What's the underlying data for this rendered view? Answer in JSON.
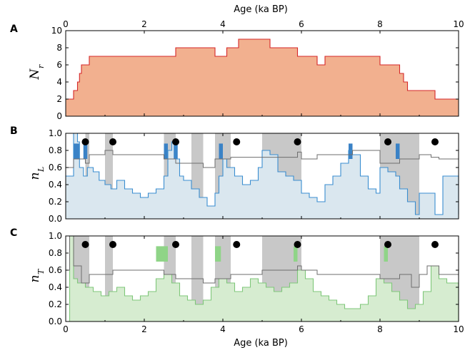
{
  "chart_data": [
    {
      "panel": "A",
      "type": "area",
      "ylabel": "N",
      "ylabel_sub": "r",
      "top_xlabel": "Age (ka BP)",
      "xlim": [
        0,
        10
      ],
      "ylim": [
        0,
        10
      ],
      "xticks": [
        0,
        2,
        4,
        6,
        8,
        10
      ],
      "yticks": [
        0,
        2,
        4,
        6,
        8,
        10
      ],
      "colors": {
        "fill": "#f2b08f",
        "line": "#d62728"
      },
      "x": [
        0,
        0.2,
        0.2,
        0.3,
        0.3,
        0.35,
        0.35,
        0.4,
        0.4,
        0.45,
        0.45,
        0.6,
        0.6,
        2.8,
        2.8,
        3.8,
        3.8,
        4.1,
        4.1,
        4.4,
        4.4,
        5.2,
        5.2,
        5.9,
        5.9,
        6.4,
        6.4,
        6.6,
        6.6,
        7.3,
        7.3,
        8.0,
        8.0,
        8.5,
        8.5,
        8.6,
        8.6,
        8.7,
        8.7,
        9.4,
        9.4,
        10
      ],
      "y": [
        2,
        2,
        3,
        3,
        4,
        4,
        5,
        5,
        6,
        6,
        6,
        6,
        7,
        7,
        8,
        8,
        7,
        7,
        8,
        8,
        9,
        9,
        8,
        8,
        7,
        7,
        6,
        6,
        7,
        7,
        7,
        7,
        6,
        6,
        5,
        5,
        4,
        4,
        3,
        3,
        2,
        2
      ]
    },
    {
      "panel": "B",
      "type": "area",
      "ylabel": "n",
      "ylabel_sub": "L",
      "xlim": [
        0,
        10
      ],
      "ylim": [
        0,
        1
      ],
      "xticks": [
        0,
        2,
        4,
        6,
        8,
        10
      ],
      "yticks": [
        0.0,
        0.2,
        0.4,
        0.6,
        0.8,
        1.0
      ],
      "colors": {
        "fill": "#dae7ef",
        "line": "#3a8ed0",
        "highlight": "#3a82c6",
        "gray_line": "#6e6e6e",
        "band": "#c8c8c8",
        "dot": "#000000"
      },
      "bands": [
        [
          0.5,
          0.6
        ],
        [
          1.0,
          1.2
        ],
        [
          2.5,
          2.8
        ],
        [
          3.2,
          3.5
        ],
        [
          3.8,
          4.2
        ],
        [
          5.0,
          6.0
        ],
        [
          8.0,
          9.0
        ]
      ],
      "dots_x": [
        0.5,
        1.2,
        2.8,
        4.35,
        5.9,
        8.2,
        9.4
      ],
      "dots_y": 0.9,
      "highlights": [
        [
          0.2,
          0.35
        ],
        [
          0.45,
          0.55
        ],
        [
          2.5,
          2.6
        ],
        [
          2.75,
          2.85
        ],
        [
          3.9,
          4.0
        ],
        [
          7.2,
          7.3
        ],
        [
          8.4,
          8.5
        ]
      ],
      "line_x": [
        0,
        0.2,
        0.3,
        0.35,
        0.45,
        0.55,
        0.7,
        0.85,
        1.0,
        1.15,
        1.3,
        1.5,
        1.7,
        1.9,
        2.1,
        2.3,
        2.5,
        2.6,
        2.7,
        2.8,
        2.9,
        3.0,
        3.2,
        3.4,
        3.6,
        3.8,
        3.9,
        4.0,
        4.1,
        4.3,
        4.5,
        4.7,
        4.9,
        5.0,
        5.2,
        5.4,
        5.6,
        5.8,
        6.0,
        6.2,
        6.4,
        6.6,
        6.8,
        7.0,
        7.2,
        7.3,
        7.5,
        7.7,
        7.9,
        8.0,
        8.2,
        8.4,
        8.5,
        8.7,
        8.9,
        9.0,
        9.2,
        9.4,
        9.6,
        9.8,
        10.0
      ],
      "line_y": [
        0.5,
        1.0,
        0.9,
        0.6,
        0.5,
        0.6,
        0.55,
        0.45,
        0.4,
        0.35,
        0.45,
        0.35,
        0.3,
        0.25,
        0.3,
        0.35,
        0.5,
        0.8,
        0.9,
        0.7,
        0.5,
        0.45,
        0.35,
        0.25,
        0.15,
        0.3,
        0.5,
        0.7,
        0.6,
        0.5,
        0.4,
        0.45,
        0.6,
        0.8,
        0.75,
        0.55,
        0.5,
        0.45,
        0.3,
        0.25,
        0.2,
        0.4,
        0.5,
        0.65,
        0.8,
        0.75,
        0.5,
        0.35,
        0.3,
        0.6,
        0.55,
        0.5,
        0.35,
        0.2,
        0.05,
        0.3,
        0.3,
        0.05,
        0.5,
        0.5,
        0.05
      ],
      "gray_x": [
        0,
        0.2,
        0.5,
        0.6,
        1.0,
        1.2,
        2.5,
        2.8,
        3.5,
        3.8,
        4.2,
        5.0,
        5.9,
        6.0,
        6.4,
        7.3,
        8.0,
        8.5,
        9.0,
        9.3,
        9.5,
        10.0
      ],
      "gray_y": [
        0.6,
        0.7,
        0.65,
        0.75,
        0.8,
        0.75,
        0.7,
        0.65,
        0.6,
        0.7,
        0.72,
        0.72,
        0.78,
        0.7,
        0.75,
        0.8,
        0.65,
        0.7,
        0.75,
        0.72,
        0.7,
        0.7
      ]
    },
    {
      "panel": "C",
      "type": "area",
      "ylabel": "n",
      "ylabel_sub": "T",
      "xlabel": "Age (ka BP)",
      "xlim": [
        0,
        10
      ],
      "ylim": [
        0,
        1
      ],
      "xticks": [
        0,
        2,
        4,
        6,
        8,
        10
      ],
      "yticks": [
        0.0,
        0.2,
        0.4,
        0.6,
        0.8,
        1.0
      ],
      "colors": {
        "fill": "#d6ecd0",
        "line": "#7fc77a",
        "highlight": "#8fd487",
        "gray_line": "#6e6e6e",
        "band": "#c8c8c8",
        "dot": "#000000"
      },
      "bands": [
        [
          0.2,
          0.6
        ],
        [
          1.0,
          1.2
        ],
        [
          2.5,
          2.8
        ],
        [
          3.2,
          3.5
        ],
        [
          3.8,
          4.2
        ],
        [
          5.0,
          6.0
        ],
        [
          8.0,
          9.0
        ]
      ],
      "dots_x": [
        0.5,
        1.2,
        2.8,
        4.35,
        5.9,
        8.2,
        9.4
      ],
      "dots_y": 0.9,
      "highlights": [
        [
          2.3,
          2.6
        ],
        [
          3.8,
          3.95
        ],
        [
          5.8,
          5.9
        ],
        [
          8.1,
          8.2
        ]
      ],
      "line_x": [
        0,
        0.1,
        0.2,
        0.3,
        0.5,
        0.7,
        0.9,
        1.1,
        1.3,
        1.5,
        1.7,
        1.9,
        2.1,
        2.3,
        2.5,
        2.7,
        2.9,
        3.1,
        3.3,
        3.5,
        3.7,
        3.9,
        4.1,
        4.3,
        4.5,
        4.7,
        4.9,
        5.1,
        5.3,
        5.5,
        5.7,
        5.9,
        6.1,
        6.3,
        6.5,
        6.7,
        6.9,
        7.1,
        7.3,
        7.5,
        7.7,
        7.9,
        8.1,
        8.3,
        8.5,
        8.7,
        8.9,
        9.1,
        9.3,
        9.5,
        9.7,
        9.8,
        10.0
      ],
      "line_y": [
        0.0,
        1.0,
        0.5,
        0.45,
        0.4,
        0.35,
        0.3,
        0.35,
        0.4,
        0.3,
        0.25,
        0.3,
        0.35,
        0.5,
        0.55,
        0.45,
        0.3,
        0.25,
        0.2,
        0.25,
        0.4,
        0.5,
        0.45,
        0.35,
        0.4,
        0.5,
        0.45,
        0.4,
        0.35,
        0.4,
        0.45,
        0.6,
        0.5,
        0.35,
        0.3,
        0.25,
        0.2,
        0.15,
        0.15,
        0.2,
        0.3,
        0.5,
        0.45,
        0.35,
        0.25,
        0.15,
        0.2,
        0.35,
        0.65,
        0.5,
        0.45,
        0.45,
        0.0
      ],
      "gray_x": [
        0,
        0.1,
        0.2,
        0.4,
        0.6,
        1.0,
        1.2,
        2.5,
        2.8,
        3.5,
        3.8,
        4.2,
        5.0,
        5.9,
        6.0,
        6.4,
        7.3,
        8.0,
        8.5,
        8.8,
        9.0,
        9.2,
        9.5,
        10.0
      ],
      "gray_y": [
        0.6,
        1.0,
        0.65,
        0.45,
        0.55,
        0.55,
        0.6,
        0.55,
        0.5,
        0.45,
        0.5,
        0.55,
        0.6,
        0.65,
        0.6,
        0.55,
        0.55,
        0.5,
        0.55,
        0.4,
        0.55,
        0.65,
        0.55,
        0.5
      ]
    }
  ]
}
